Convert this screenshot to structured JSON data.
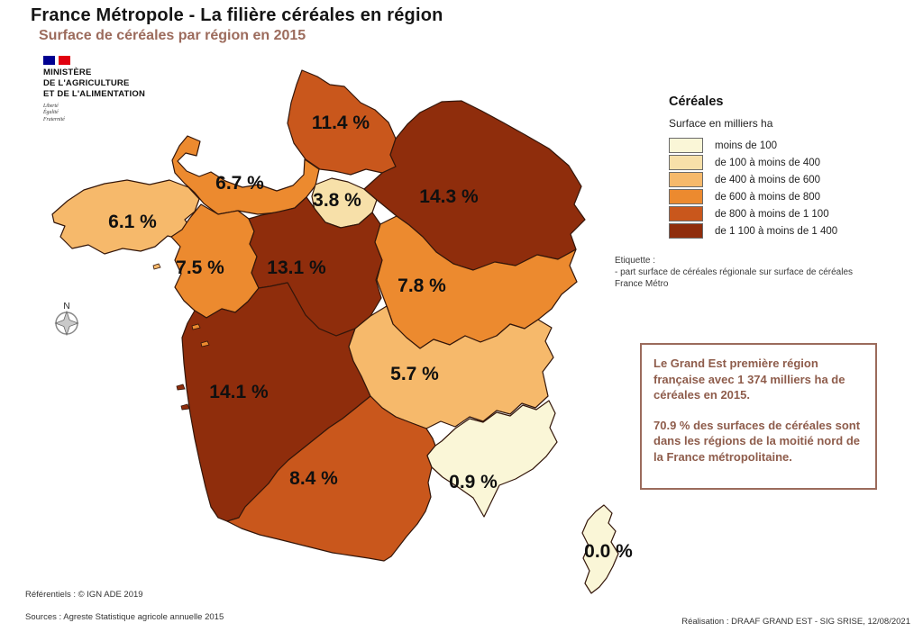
{
  "header": {
    "title": "France Métropole - La filière céréales en région",
    "subtitle": "Surface de céréales par région en 2015"
  },
  "logo": {
    "ministry": [
      "MINISTÈRE",
      "DE L'AGRICULTURE",
      "ET DE L'ALIMENTATION"
    ],
    "motto": [
      "Liberté",
      "Égalité",
      "Fraternité"
    ]
  },
  "legend": {
    "title": "Céréales",
    "subtitle": "Surface en milliers ha",
    "classes": [
      {
        "label": "moins de 100",
        "color": "#FAF6D7"
      },
      {
        "label": "de 100 à moins de 400",
        "color": "#F7E0A9"
      },
      {
        "label": "de 400 à moins de 600",
        "color": "#F6B96B"
      },
      {
        "label": "de 600 à moins de 800",
        "color": "#EC8A2F"
      },
      {
        "label": "de 800 à moins de 1 100",
        "color": "#C9571C"
      },
      {
        "label": "de 1 100 à moins de 1 400",
        "color": "#8F2D0C"
      }
    ]
  },
  "note": {
    "lines": [
      "Etiquette :",
      "- part surface de céréales régionale sur surface de céréales",
      "France Métro"
    ]
  },
  "info_box": {
    "paragraph1": "Le Grand Est première région française avec 1 374 milliers ha de céréales en 2015.",
    "paragraph2": "70.9 % des surfaces de céréales sont dans les régions de la moitié nord de la France métropolitaine."
  },
  "compass": {
    "label": "N"
  },
  "footer": {
    "referentiels": "Référentiels : © IGN ADE 2019",
    "sources": "Sources : Agreste Statistique agricole annuelle 2015",
    "realisation": "Réalisation : DRAAF GRAND EST - SIG SRISE, 12/08/2021"
  },
  "chart_data": {
    "type": "choropleth_map",
    "title": "Surface de céréales par région en 2015",
    "value_meaning": "part surface de céréales régionale sur surface de céréales France Métro (%)",
    "regions": [
      {
        "key": "hauts-de-france",
        "label": "11.4 %",
        "value": 11.4,
        "class": "de 800 à moins de 1 100",
        "color": "#C9571C"
      },
      {
        "key": "normandie",
        "label": "6.7 %",
        "value": 6.7,
        "class": "de 600 à moins de 800",
        "color": "#EC8A2F"
      },
      {
        "key": "ile-de-france",
        "label": "3.8 %",
        "value": 3.8,
        "class": "de 100 à moins de 400",
        "color": "#F7E0A9"
      },
      {
        "key": "grand-est",
        "label": "14.3 %",
        "value": 14.3,
        "class": "de 1 100 à moins de 1 400",
        "color": "#8F2D0C"
      },
      {
        "key": "bretagne",
        "label": "6.1 %",
        "value": 6.1,
        "class": "de 400 à moins de 600",
        "color": "#F6B96B"
      },
      {
        "key": "pays-de-la-loire",
        "label": "7.5 %",
        "value": 7.5,
        "class": "de 600 à moins de 800",
        "color": "#EC8A2F"
      },
      {
        "key": "centre-val-de-loire",
        "label": "13.1 %",
        "value": 13.1,
        "class": "de 1 100 à moins de 1 400",
        "color": "#8F2D0C"
      },
      {
        "key": "bourgogne-franche-comte",
        "label": "7.8 %",
        "value": 7.8,
        "class": "de 600 à moins de 800",
        "color": "#EC8A2F"
      },
      {
        "key": "nouvelle-aquitaine",
        "label": "14.1 %",
        "value": 14.1,
        "class": "de 1 100 à moins de 1 400",
        "color": "#8F2D0C"
      },
      {
        "key": "auvergne-rhone-alpes",
        "label": "5.7 %",
        "value": 5.7,
        "class": "de 400 à moins de 600",
        "color": "#F6B96B"
      },
      {
        "key": "occitanie",
        "label": "8.4 %",
        "value": 8.4,
        "class": "de 800 à moins de 1 100",
        "color": "#C9571C"
      },
      {
        "key": "provence-alpes-cote-d-azur",
        "label": "0.9 %",
        "value": 0.9,
        "class": "moins de 100",
        "color": "#FAF6D7"
      },
      {
        "key": "corse",
        "label": "0.0 %",
        "value": 0.0,
        "class": "moins de 100",
        "color": "#FAF6D7"
      }
    ]
  }
}
